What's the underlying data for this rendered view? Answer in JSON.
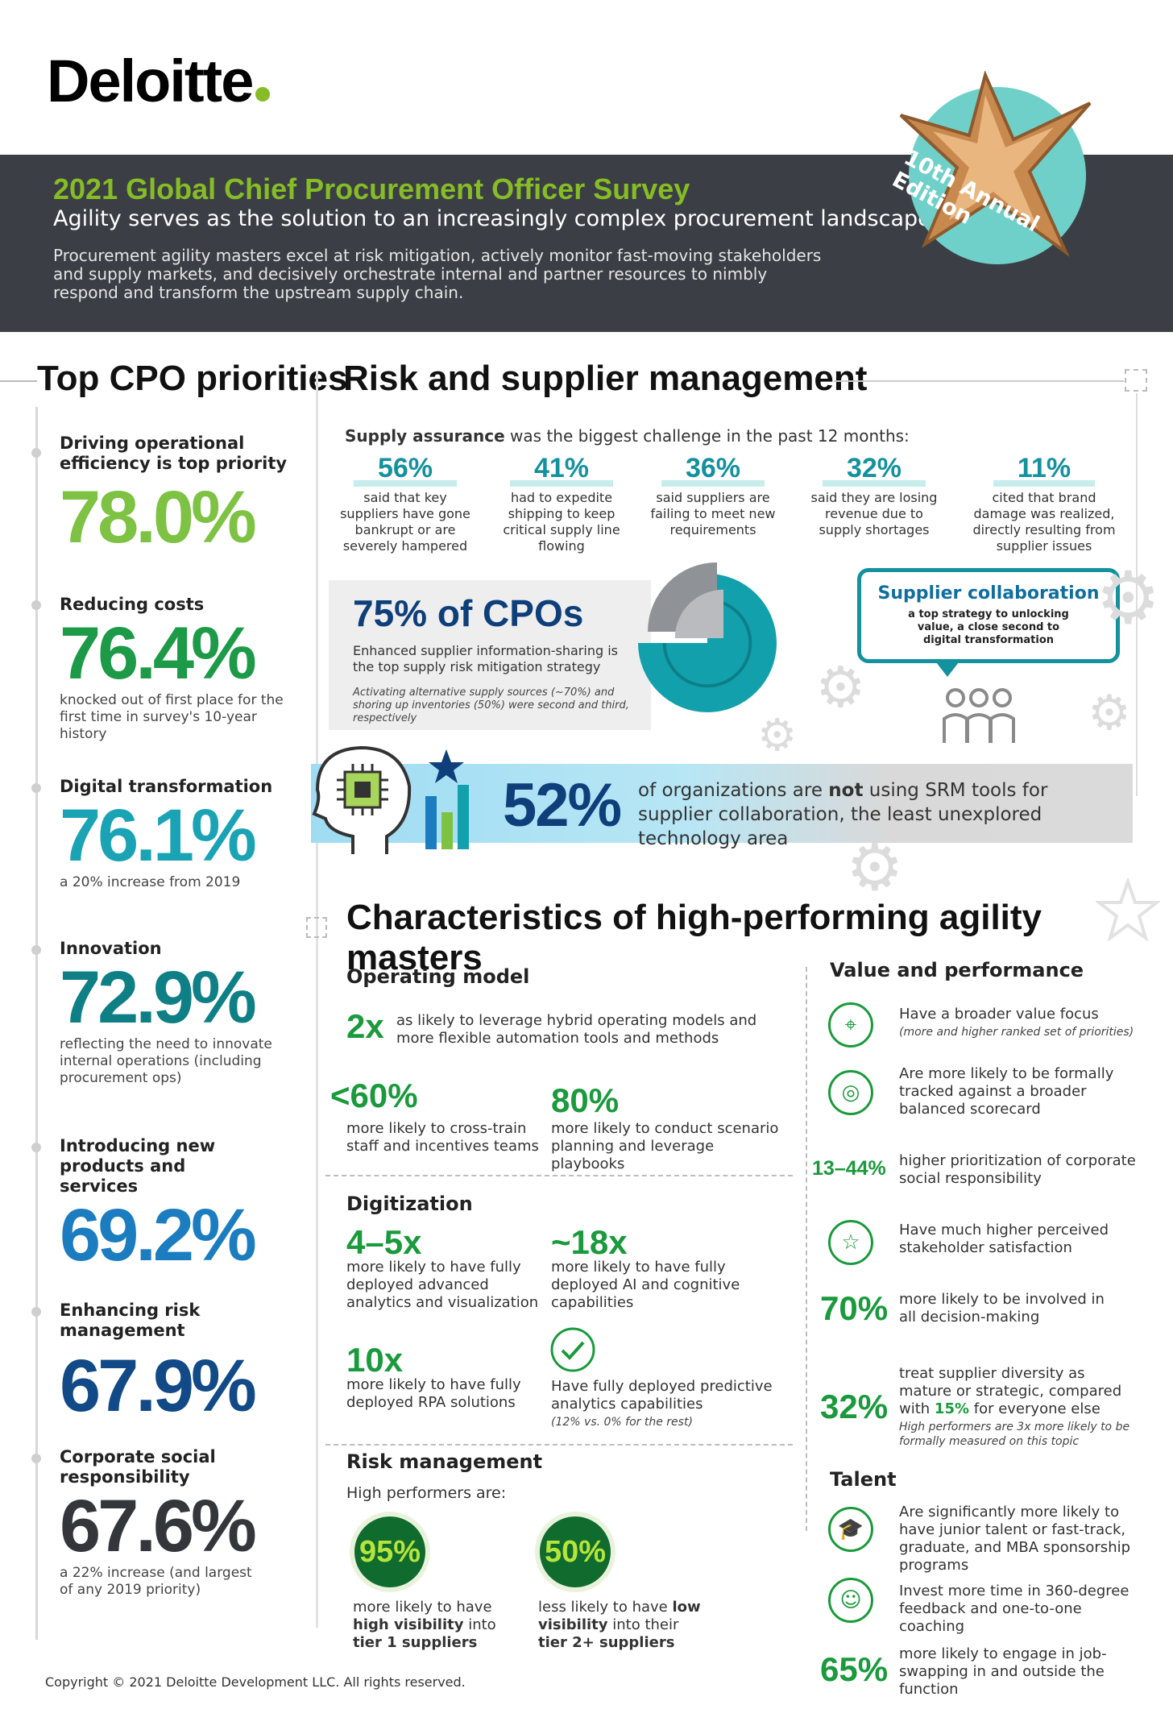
{
  "brand": {
    "name": "Deloitte",
    "dot_color": "#86bc25"
  },
  "banner": {
    "title": "2021 Global Chief Procurement Officer Survey",
    "subtitle": "Agility serves as the solution to an increasingly complex procurement landscape",
    "description": "Procurement agility masters excel at risk mitigation, actively monitor fast-moving stakeholders and supply markets, and decisively orchestrate internal and partner resources to nimbly respond and transform the upstream supply chain.",
    "edition": "10th Annual Edition",
    "bg_color": "#3b3f45"
  },
  "priorities": {
    "heading": "Top CPO priorities",
    "items": [
      {
        "label": "Driving operational efficiency is top priority",
        "value": "78.0%",
        "note": "",
        "color": "#7dc243"
      },
      {
        "label": "Reducing costs",
        "value": "76.4%",
        "note": "knocked out of first place for the first time in survey's 10-year history",
        "color": "#1d9a47"
      },
      {
        "label": "Digital transformation",
        "value": "76.1%",
        "note": "a 20% increase from 2019",
        "color": "#1aa3b5"
      },
      {
        "label": "Innovation",
        "value": "72.9%",
        "note": "reflecting the need to innovate internal operations (including procurement ops)",
        "color": "#0f7f86"
      },
      {
        "label": "Introducing new products and services",
        "value": "69.2%",
        "note": "",
        "color": "#1b7dc0"
      },
      {
        "label": "Enhancing risk management",
        "value": "67.9%",
        "note": "",
        "color": "#114a86"
      },
      {
        "label": "Corporate social responsibility",
        "value": "67.6%",
        "note": "a 22% increase (and largest of any 2019 priority)",
        "color": "#33363a"
      }
    ]
  },
  "risk": {
    "heading": "Risk and supplier management",
    "intro_bold": "Supply assurance",
    "intro_rest": " was the biggest challenge in the past 12 months:",
    "stats": [
      {
        "value": "56%",
        "text": "said that key suppliers have gone bankrupt or are severely hampered"
      },
      {
        "value": "41%",
        "text": "had to expedite shipping to keep critical supply line flowing"
      },
      {
        "value": "36%",
        "text": "said suppliers are failing to meet new requirements"
      },
      {
        "value": "32%",
        "text": "said they are losing revenue due to supply shortages"
      },
      {
        "value": "11%",
        "text": "cited that brand damage was realized, directly resulting from supplier issues"
      }
    ],
    "cpo": {
      "title": "75% of CPOs",
      "text": "Enhanced supplier information-sharing is the top supply risk mitigation strategy",
      "note": "Activating alternative supply sources (~70%) and shoring up inventories (50%) were second and third, respectively",
      "pie_share": 0.75
    },
    "collab": {
      "title": "Supplier collaboration",
      "text": "a top strategy to unlocking value, a close second to digital transformation"
    },
    "srm": {
      "value": "52%",
      "pre": "of organizations are ",
      "bold": "not",
      "post": " using SRM tools for supplier collaboration, the least unexplored technology area"
    }
  },
  "characteristics": {
    "heading": "Characteristics of high-performing agility masters",
    "operating_model": {
      "heading": "Operating model",
      "a_val": "2x",
      "a_text": "as likely to leverage hybrid operating models and more flexible automation tools and methods",
      "b_val": "<60%",
      "b_text": "more likely to cross-train staff and incentives teams",
      "c_val": "80%",
      "c_text": "more likely to conduct scenario planning and leverage playbooks"
    },
    "digitization": {
      "heading": "Digitization",
      "a_val": "4–5x",
      "a_text": "more likely to have fully deployed advanced analytics and visualization",
      "b_val": "~18x",
      "b_text": "more likely to have fully deployed AI and cognitive capabilities",
      "c_val": "10x",
      "c_text": "more likely to have fully deployed RPA solutions",
      "d_text": "Have fully deployed predictive analytics capabilities",
      "d_note": "(12% vs. 0% for the rest)"
    },
    "risk_mgmt": {
      "heading": "Risk management",
      "intro": "High performers are:",
      "a_val": "95%",
      "a_pre": "more likely to have ",
      "a_bold": "high visibility",
      "a_mid": " into ",
      "a_bold2": "tier 1 suppliers",
      "b_val": "50%",
      "b_pre": "less likely to have ",
      "b_bold": "low visibility",
      "b_mid": " into their ",
      "b_bold2": "tier 2+ suppliers"
    },
    "value": {
      "heading": "Value and performance",
      "i1": "Have a broader value focus",
      "i1_note": "(more and higher ranked set of priorities)",
      "i2": "Are more likely to be formally tracked against a broader balanced scorecard",
      "i3_val": "13–44%",
      "i3": "higher prioritization of corporate social responsibility",
      "i4": "Have much higher perceived stakeholder satisfaction",
      "i5_val": "70%",
      "i5": "more likely to be involved in all decision-making",
      "i6_val": "32%",
      "i6_pre": "treat supplier diversity as mature or strategic, compared with ",
      "i6_bold": "15%",
      "i6_post": " for everyone else",
      "i6_note": "High performers are 3x more likely to be formally measured on this topic"
    },
    "talent": {
      "heading": "Talent",
      "i1": "Are significantly more likely to have junior talent or fast-track, graduate, and MBA sponsorship programs",
      "i2": "Invest more time in 360-degree feedback and one-to-one coaching",
      "i3_val": "65%",
      "i3": "more likely to engage in job-swapping in and outside the function"
    }
  },
  "footer": {
    "copyright": "Copyright © 2021 Deloitte Development LLC. All rights reserved."
  }
}
